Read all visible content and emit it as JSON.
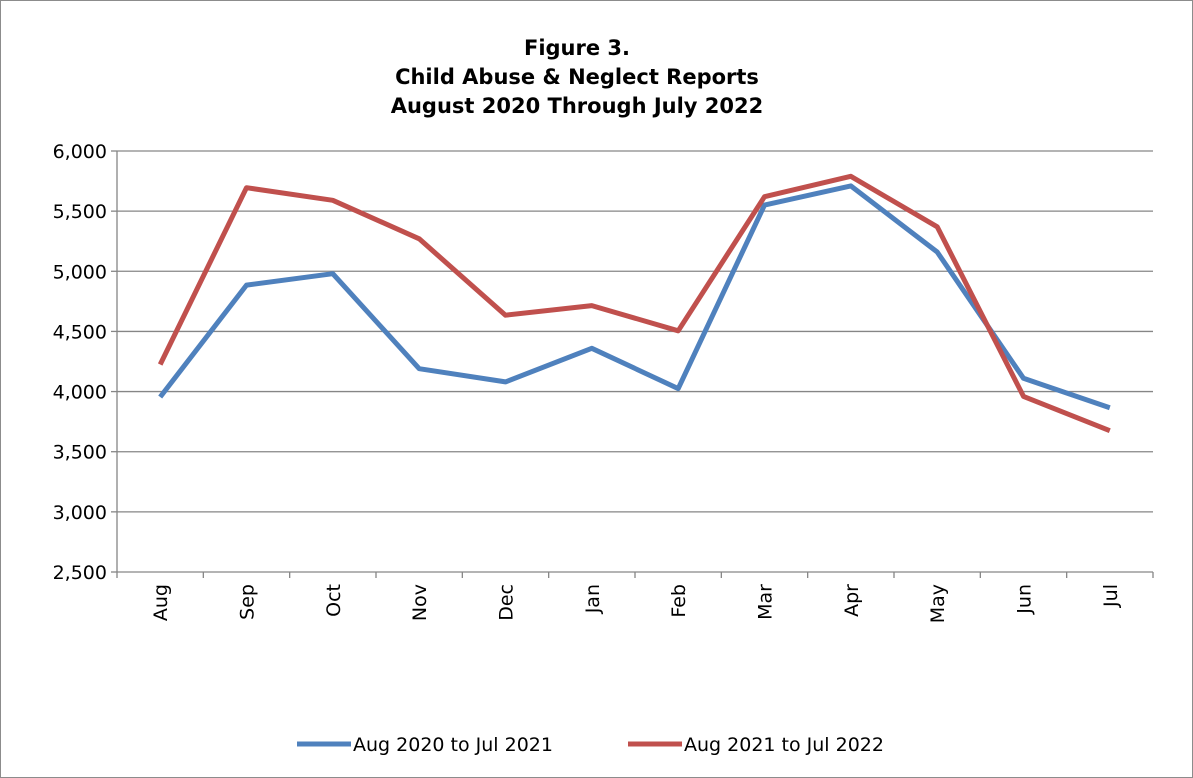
{
  "chart_data": {
    "type": "line",
    "title": [
      "Figure 3.",
      "Child Abuse & Neglect Reports",
      "August 2020 Through July 2022"
    ],
    "xlabel": "",
    "ylabel": "",
    "categories": [
      "Aug",
      "Sep",
      "Oct",
      "Nov",
      "Dec",
      "Jan",
      "Feb",
      "Mar",
      "Apr",
      "May",
      "Jun",
      "Jul"
    ],
    "ylim": [
      2500,
      6000
    ],
    "ytick_step": 500,
    "ytick_labels": [
      "2,500",
      "3,000",
      "3,500",
      "4,000",
      "4,500",
      "5,000",
      "5,500",
      "6,000"
    ],
    "grid": true,
    "legend_position": "bottom",
    "series": [
      {
        "name": "Aug 2020 to Jul 2021",
        "color": "#4f81bd",
        "values": [
          3955,
          4885,
          4980,
          4190,
          4080,
          4360,
          4025,
          5550,
          5710,
          5160,
          4110,
          3865
        ]
      },
      {
        "name": "Aug 2021 to Jul 2022",
        "color": "#c0504d",
        "values": [
          4225,
          5695,
          5590,
          5270,
          4635,
          4715,
          4505,
          5620,
          5790,
          5370,
          3960,
          3675
        ]
      }
    ]
  }
}
